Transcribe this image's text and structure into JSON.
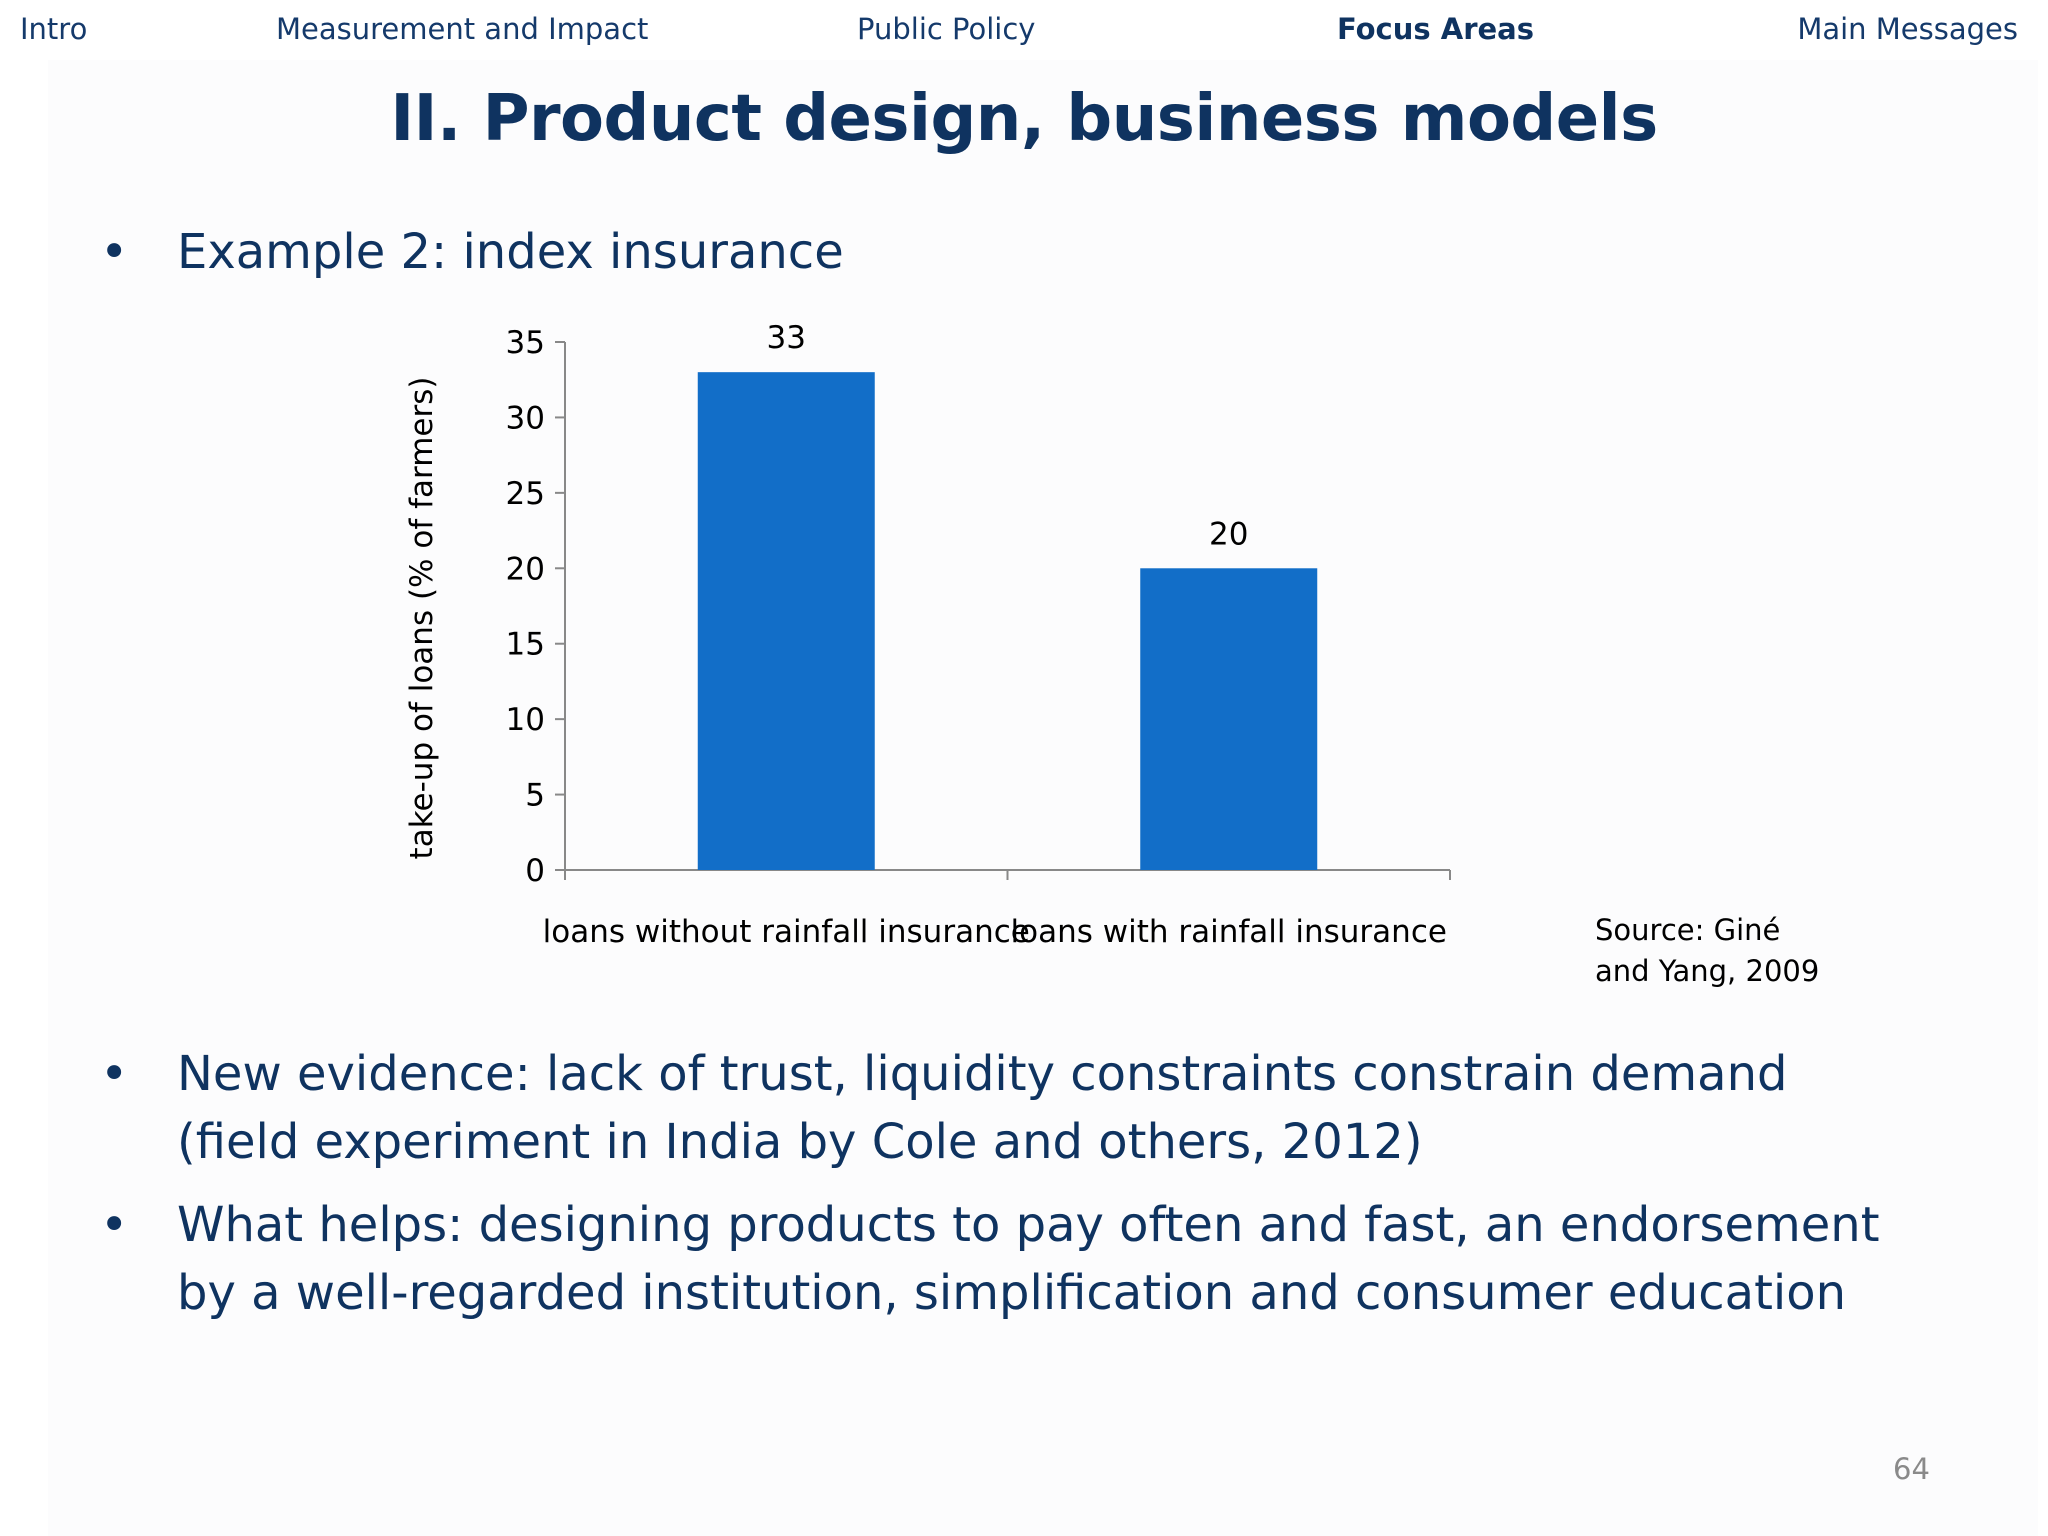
{
  "nav": {
    "items": [
      {
        "label": "Intro"
      },
      {
        "label": "Measurement and Impact"
      },
      {
        "label": "Public Policy"
      },
      {
        "label": "Focus Areas"
      },
      {
        "label": "Main Messages"
      }
    ],
    "active": "Focus Areas"
  },
  "slide": {
    "title": "II. Product design, business models",
    "bullet_marker": "•",
    "bullets": [
      {
        "lines": [
          "Example 2: index insurance"
        ]
      },
      {
        "lines": [
          "New evidence: lack of trust, liquidity constraints constrain demand",
          "(field experiment in India by Cole and others, 2012)"
        ]
      },
      {
        "lines": [
          "What helps: designing products to pay often and fast, an endorsement",
          "by a well-regarded institution, simplification and consumer education"
        ]
      }
    ],
    "source_lines": [
      "Source: Giné",
      "and Yang, 2009"
    ],
    "page_number": "64"
  },
  "chart_data": {
    "type": "bar",
    "title": "",
    "categories": [
      "loans without rainfall insurance",
      "loans with rainfall insurance"
    ],
    "values": [
      33,
      20
    ],
    "data_labels": [
      "33",
      "20"
    ],
    "xlabel": "",
    "ylabel": "take-up of loans (%  of farmers)",
    "ylim": [
      0,
      35
    ],
    "yticks": [
      0,
      5,
      10,
      15,
      20,
      25,
      30,
      35
    ],
    "grid": false,
    "legend": "none",
    "bar_color": "#126ec8"
  }
}
